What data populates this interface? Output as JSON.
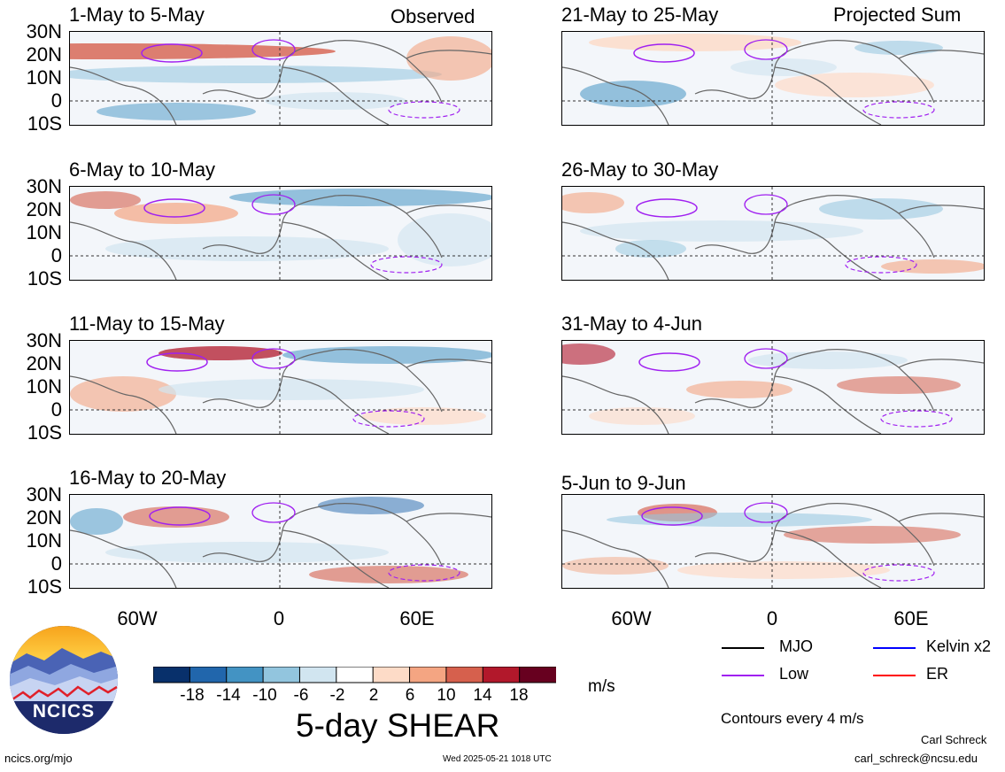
{
  "header": {
    "observed_label": "Observed",
    "projected_label": "Projected Sum"
  },
  "panels_left": [
    {
      "title": "1-May to 5-May"
    },
    {
      "title": "6-May to 10-May"
    },
    {
      "title": "11-May to 15-May"
    },
    {
      "title": "16-May to 20-May"
    }
  ],
  "panels_right": [
    {
      "title": "21-May to 25-May"
    },
    {
      "title": "26-May to 30-May"
    },
    {
      "title": "31-May to 4-Jun"
    },
    {
      "title": "5-Jun to 9-Jun"
    }
  ],
  "lat_labels": [
    "30N",
    "20N",
    "10N",
    "0",
    "10S"
  ],
  "lon_labels": [
    "60W",
    "0",
    "60E"
  ],
  "colorbar": {
    "ticks": [
      "-18",
      "-14",
      "-10",
      "-6",
      "-2",
      "2",
      "6",
      "10",
      "14",
      "18"
    ],
    "colors": [
      "#08306b",
      "#2166ac",
      "#4393c3",
      "#92c5de",
      "#d1e5f0",
      "#ffffff",
      "#fddbc7",
      "#f4a582",
      "#d6604d",
      "#b2182b",
      "#67001f"
    ],
    "units": "m/s",
    "title": "5-day SHEAR"
  },
  "legend": {
    "mjo": "MJO",
    "kelvin": "Kelvin x2",
    "low": "Low",
    "er": "ER",
    "colors": {
      "mjo": "#000000",
      "kelvin": "#0000ff",
      "low": "#a020f0",
      "er": "#ff0000"
    },
    "contours_note": "Contours every 4 m/s"
  },
  "logo": {
    "text": "NCICS"
  },
  "footer": {
    "site": "ncics.org/mjo",
    "timestamp": "Wed 2025-05-21 1018 UTC",
    "author": "Carl Schreck",
    "email": "carl_schreck@ncsu.edu"
  }
}
